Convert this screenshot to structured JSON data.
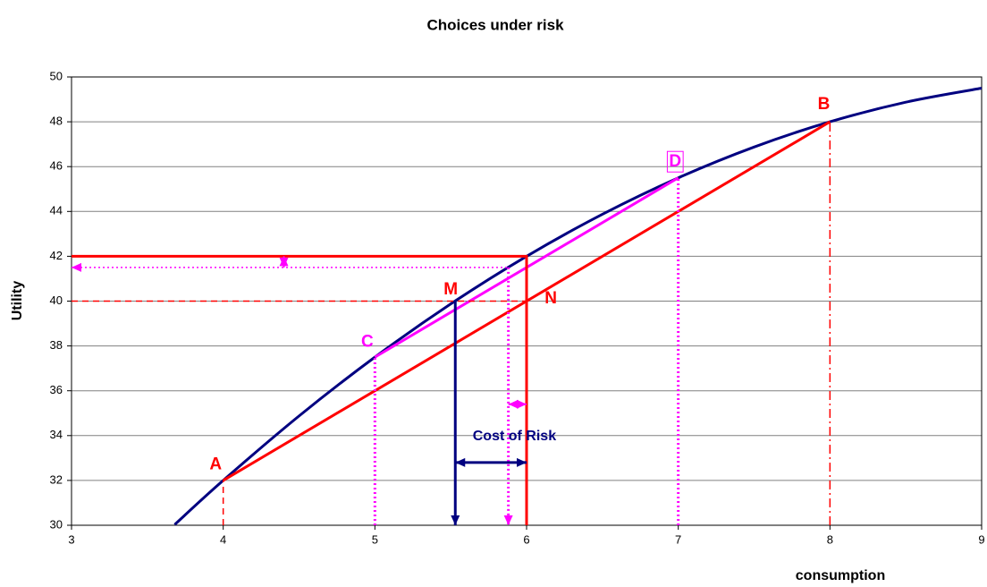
{
  "chart_data": {
    "type": "line",
    "title": "Choices under risk",
    "x_label": "consumption",
    "y_label": "Utility",
    "xlim": [
      3,
      9
    ],
    "ylim": [
      30,
      50
    ],
    "xticks": [
      3,
      4,
      5,
      6,
      7,
      8,
      9
    ],
    "yticks": [
      30,
      32,
      34,
      36,
      38,
      40,
      42,
      44,
      46,
      48,
      50
    ],
    "grid": true,
    "series": [
      {
        "color": "#000080",
        "width": 3,
        "dash": "solid",
        "arrow": "none",
        "smooth": true,
        "x": [
          3.68,
          4,
          4.5,
          5,
          5.5,
          6,
          6.5,
          7,
          7.5,
          8,
          8.5,
          9
        ],
        "values": [
          30.03,
          32,
          34.875,
          37.5,
          39.875,
          42,
          43.875,
          45.5,
          46.875,
          48,
          48.875,
          49.5
        ]
      },
      {
        "color": "#ff0000",
        "width": 3,
        "dash": "solid",
        "arrow": "none",
        "x": [
          4,
          8
        ],
        "values": [
          32,
          48
        ]
      },
      {
        "color": "#ff00ff",
        "width": 3,
        "dash": "solid",
        "arrow": "none",
        "x": [
          5,
          7
        ],
        "values": [
          37.5,
          45.5
        ]
      },
      {
        "color": "#ff0000",
        "width": 3,
        "dash": "solid",
        "arrow": "none",
        "x": [
          3,
          6,
          6
        ],
        "values": [
          42,
          42,
          30
        ]
      },
      {
        "color": "#ff0000",
        "width": 1.5,
        "dash": "dashed",
        "arrow": "none",
        "x": [
          3,
          6
        ],
        "values": [
          40,
          40
        ]
      },
      {
        "color": "#ff0000",
        "width": 1.5,
        "dash": "dashed",
        "arrow": "none",
        "x": [
          4,
          4
        ],
        "values": [
          30,
          32
        ]
      },
      {
        "color": "#ff0000",
        "width": 1.5,
        "dash": "dashdot",
        "arrow": "none",
        "x": [
          8,
          8
        ],
        "values": [
          30,
          48
        ]
      },
      {
        "color": "#ff00ff",
        "width": 1.5,
        "dash": "dotted",
        "arrow": "start",
        "x": [
          3,
          5.88
        ],
        "values": [
          41.5,
          41.5
        ]
      },
      {
        "color": "#ff00ff",
        "width": 3,
        "dash": "dotted",
        "arrow": "none",
        "x": [
          5,
          5
        ],
        "values": [
          30,
          37.5
        ]
      },
      {
        "color": "#ff00ff",
        "width": 3,
        "dash": "dotted",
        "arrow": "none",
        "x": [
          7,
          7
        ],
        "values": [
          30,
          45.5
        ]
      },
      {
        "color": "#ff00ff",
        "width": 3,
        "dash": "dotted",
        "arrow": "end",
        "x": [
          5.88,
          5.88
        ],
        "values": [
          41.5,
          30
        ]
      },
      {
        "color": "#000080",
        "width": 3,
        "dash": "solid",
        "arrow": "end",
        "x": [
          5.53,
          5.53
        ],
        "values": [
          40,
          30
        ]
      },
      {
        "color": "#000080",
        "width": 3,
        "dash": "solid",
        "arrow": "both",
        "x": [
          5.53,
          6
        ],
        "values": [
          32.8,
          32.8
        ]
      },
      {
        "color": "#ff00ff",
        "width": 2,
        "dash": "solid",
        "arrow": "both",
        "x": [
          5.88,
          6
        ],
        "values": [
          35.4,
          35.4
        ]
      },
      {
        "color": "#ff00ff",
        "width": 2,
        "dash": "solid",
        "arrow": "both",
        "x": [
          4.4,
          4.4
        ],
        "values": [
          41.5,
          42
        ]
      }
    ],
    "annotations": [
      {
        "text": "A",
        "x": 3.95,
        "y": 32.7,
        "color": "#ff0000"
      },
      {
        "text": "B",
        "x": 7.96,
        "y": 48.76,
        "color": "#ff0000"
      },
      {
        "text": "C",
        "x": 4.95,
        "y": 38.16,
        "color": "#ff00ff"
      },
      {
        "text": "D",
        "x": 6.98,
        "y": 46.2,
        "color": "#ff00ff",
        "boxed": true
      },
      {
        "text": "M",
        "x": 5.5,
        "y": 40.5,
        "color": "#ff0000"
      },
      {
        "text": "N",
        "x": 6.16,
        "y": 40.1,
        "color": "#ff0000"
      },
      {
        "text": "Cost of Risk",
        "x": 5.92,
        "y": 33.96,
        "color": "#000080"
      }
    ]
  }
}
